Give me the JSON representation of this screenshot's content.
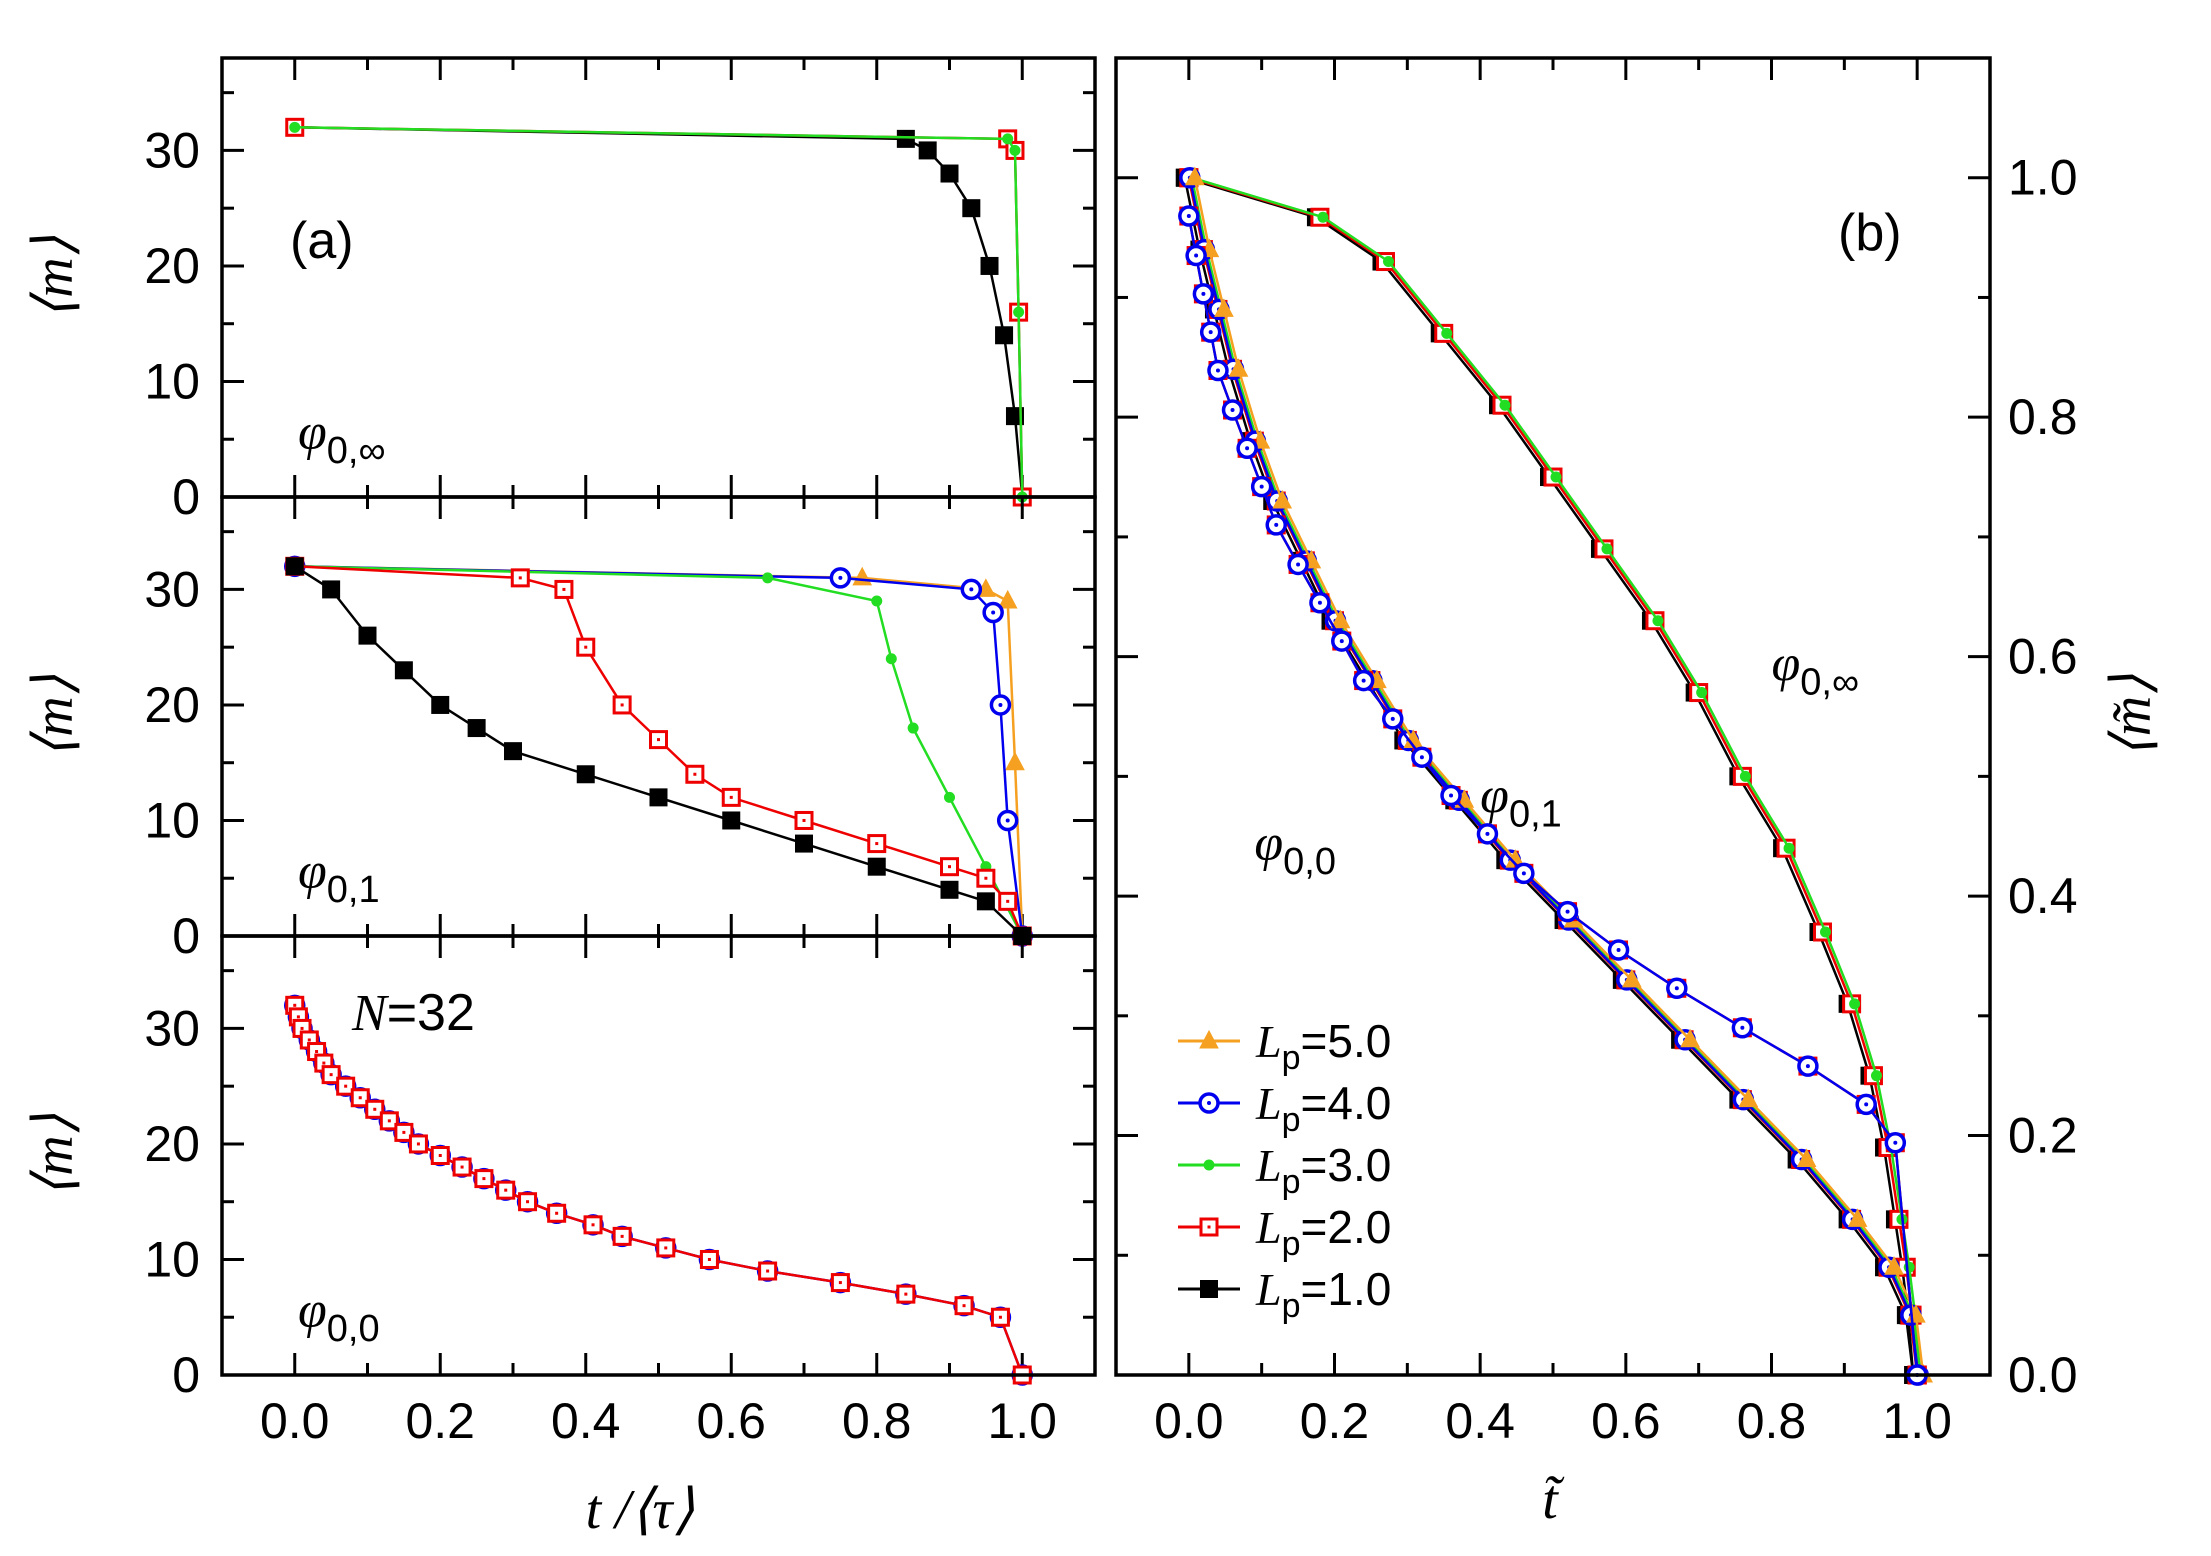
{
  "chart_data": [
    {
      "type": "line",
      "panel": "(a) top",
      "annotation": {
        "symbol": "φ",
        "sub": "0,∞"
      },
      "xlim": [
        -0.1,
        1.1
      ],
      "ylim": [
        0,
        38
      ],
      "ylabel": "⟨m⟩",
      "yticks": [
        0,
        10,
        20,
        30
      ],
      "series": [
        {
          "name": "Lp=1.0",
          "x": [
            0.0,
            0.84,
            0.87,
            0.9,
            0.93,
            0.955,
            0.975,
            0.99,
            1.0
          ],
          "y": [
            32,
            31,
            30,
            28,
            25,
            20,
            14,
            7,
            0
          ]
        },
        {
          "name": "Lp=2.0",
          "x": [
            0.0,
            0.98,
            0.99,
            0.995,
            1.0
          ],
          "y": [
            32,
            31,
            30,
            16,
            0
          ]
        },
        {
          "name": "Lp=3.0",
          "x": [
            0.0,
            0.98,
            0.99,
            0.995,
            1.0
          ],
          "y": [
            32,
            31,
            30,
            16,
            0
          ]
        }
      ]
    },
    {
      "type": "line",
      "panel": "(a) middle",
      "annotation": {
        "symbol": "φ",
        "sub": "0,1"
      },
      "xlim": [
        -0.1,
        1.1
      ],
      "ylim": [
        0,
        38
      ],
      "ylabel": "⟨m⟩",
      "yticks": [
        0,
        10,
        20,
        30
      ],
      "series": [
        {
          "name": "Lp=5.0",
          "x": [
            0.0,
            0.78,
            0.95,
            0.98,
            0.99,
            1.0
          ],
          "y": [
            32,
            31,
            30,
            29,
            15,
            0
          ]
        },
        {
          "name": "Lp=4.0",
          "x": [
            0.0,
            0.75,
            0.93,
            0.96,
            0.97,
            0.98,
            1.0
          ],
          "y": [
            32,
            31,
            30,
            28,
            20,
            10,
            0
          ]
        },
        {
          "name": "Lp=3.0",
          "x": [
            0.0,
            0.65,
            0.8,
            0.82,
            0.85,
            0.9,
            0.95,
            1.0
          ],
          "y": [
            32,
            31,
            29,
            24,
            18,
            12,
            6,
            0
          ]
        },
        {
          "name": "Lp=2.0",
          "x": [
            0.0,
            0.31,
            0.37,
            0.4,
            0.45,
            0.5,
            0.55,
            0.6,
            0.7,
            0.8,
            0.9,
            0.95,
            0.98,
            1.0
          ],
          "y": [
            32,
            31,
            30,
            25,
            20,
            17,
            14,
            12,
            10,
            8,
            6,
            5,
            3,
            0
          ]
        },
        {
          "name": "Lp=1.0",
          "x": [
            0.0,
            0.05,
            0.1,
            0.15,
            0.2,
            0.25,
            0.3,
            0.4,
            0.5,
            0.6,
            0.7,
            0.8,
            0.9,
            0.95,
            1.0
          ],
          "y": [
            32,
            30,
            26,
            23,
            20,
            18,
            16,
            14,
            12,
            10,
            8,
            6,
            4,
            3,
            0
          ]
        }
      ]
    },
    {
      "type": "line",
      "panel": "(a) bottom",
      "annotation": {
        "symbol": "φ",
        "sub": "0,0"
      },
      "label": {
        "symbol": "N",
        "text": "=32"
      },
      "xlim": [
        -0.1,
        1.1
      ],
      "ylim": [
        0,
        38
      ],
      "xlabel": "t /⟨τ⟩",
      "ylabel": "⟨m⟩",
      "xticks": [
        "0.0",
        "0.2",
        "0.4",
        "0.6",
        "0.8",
        "1.0"
      ],
      "yticks": [
        0,
        10,
        20,
        30
      ],
      "series": [
        {
          "name": "Lp=4.0",
          "x": [
            0.0,
            0.005,
            0.01,
            0.02,
            0.03,
            0.04,
            0.05,
            0.07,
            0.09,
            0.11,
            0.13,
            0.15,
            0.17,
            0.2,
            0.23,
            0.26,
            0.29,
            0.32,
            0.36,
            0.41,
            0.45,
            0.51,
            0.57,
            0.65,
            0.75,
            0.84,
            0.92,
            0.97,
            1.0
          ],
          "y": [
            32,
            31,
            30,
            29,
            28,
            27,
            26,
            25,
            24,
            23,
            22,
            21,
            20,
            19,
            18,
            17,
            16,
            15,
            14,
            13,
            12,
            11,
            10,
            9,
            8,
            7,
            6,
            5,
            0
          ]
        },
        {
          "name": "Lp=2.0",
          "x": [
            0.0,
            0.005,
            0.01,
            0.02,
            0.03,
            0.04,
            0.05,
            0.07,
            0.09,
            0.11,
            0.13,
            0.15,
            0.17,
            0.2,
            0.23,
            0.26,
            0.29,
            0.32,
            0.36,
            0.41,
            0.45,
            0.51,
            0.57,
            0.65,
            0.75,
            0.84,
            0.92,
            0.97,
            1.0
          ],
          "y": [
            32,
            31,
            30,
            29,
            28,
            27,
            26,
            25,
            24,
            23,
            22,
            21,
            20,
            19,
            18,
            17,
            16,
            15,
            14,
            13,
            12,
            11,
            10,
            9,
            8,
            7,
            6,
            5,
            0
          ]
        }
      ]
    },
    {
      "type": "line",
      "panel": "(b)",
      "xlabel": "t̃",
      "ylabel": "⟨m̃⟩",
      "xlim": [
        -0.1,
        1.1
      ],
      "ylim": [
        0,
        1.1
      ],
      "xticks": [
        "0.0",
        "0.2",
        "0.4",
        "0.6",
        "0.8",
        "1.0"
      ],
      "yticks": [
        "0.0",
        "0.2",
        "0.4",
        "0.6",
        "0.8",
        "1.0"
      ],
      "annotations": [
        {
          "symbol": "φ",
          "sub": "0,∞",
          "x": 0.8,
          "y": 0.58
        },
        {
          "symbol": "φ",
          "sub": "0,1",
          "x": 0.4,
          "y": 0.47
        },
        {
          "symbol": "φ",
          "sub": "0,0",
          "x": 0.09,
          "y": 0.43
        }
      ],
      "legend": [
        {
          "symbol": "L",
          "sub": "p",
          "text": "=5.0"
        },
        {
          "symbol": "L",
          "sub": "p",
          "text": "=4.0"
        },
        {
          "symbol": "L",
          "sub": "p",
          "text": "=3.0"
        },
        {
          "symbol": "L",
          "sub": "p",
          "text": "=2.0"
        },
        {
          "symbol": "L",
          "sub": "p",
          "text": "=1.0"
        }
      ],
      "groups": {
        "inf": {
          "x": [
            0.0,
            0.18,
            0.27,
            0.35,
            0.43,
            0.5,
            0.57,
            0.64,
            0.7,
            0.76,
            0.82,
            0.87,
            0.91,
            0.94,
            0.96,
            0.975,
            0.985,
            0.993,
            1.0
          ],
          "y": [
            1.0,
            0.967,
            0.93,
            0.87,
            0.81,
            0.75,
            0.69,
            0.63,
            0.57,
            0.5,
            0.44,
            0.37,
            0.31,
            0.25,
            0.19,
            0.13,
            0.09,
            0.05,
            0.0
          ]
        },
        "one": {
          "x": [
            0.0,
            0.02,
            0.04,
            0.06,
            0.09,
            0.12,
            0.16,
            0.2,
            0.25,
            0.3,
            0.37,
            0.44,
            0.52,
            0.6,
            0.68,
            0.76,
            0.84,
            0.91,
            0.96,
            0.99,
            1.0
          ],
          "y": [
            1.0,
            0.94,
            0.89,
            0.84,
            0.78,
            0.73,
            0.68,
            0.63,
            0.58,
            0.53,
            0.48,
            0.43,
            0.38,
            0.33,
            0.28,
            0.23,
            0.18,
            0.13,
            0.09,
            0.05,
            0.0
          ]
        },
        "zero": {
          "x": [
            0.0,
            0.01,
            0.02,
            0.03,
            0.04,
            0.06,
            0.08,
            0.1,
            0.12,
            0.15,
            0.18,
            0.21,
            0.24,
            0.28,
            0.32,
            0.36,
            0.41,
            0.46,
            0.52,
            0.59,
            0.67,
            0.76,
            0.85,
            0.93,
            0.97,
            1.0
          ],
          "y": [
            0.968,
            0.935,
            0.903,
            0.871,
            0.839,
            0.806,
            0.774,
            0.742,
            0.71,
            0.677,
            0.645,
            0.613,
            0.58,
            0.548,
            0.516,
            0.484,
            0.452,
            0.419,
            0.387,
            0.355,
            0.323,
            0.29,
            0.258,
            0.226,
            0.194,
            0.0
          ]
        }
      },
      "series": [
        {
          "name": "Lp=5.0",
          "color": "#f5a020"
        },
        {
          "name": "Lp=4.0",
          "color": "#0000ee"
        },
        {
          "name": "Lp=3.0",
          "color": "#22dd22"
        },
        {
          "name": "Lp=2.0",
          "color": "#ee0000"
        },
        {
          "name": "Lp=1.0",
          "color": "#000000"
        }
      ]
    }
  ],
  "panel_labels": {
    "a": "(a)",
    "b": "(b)"
  }
}
